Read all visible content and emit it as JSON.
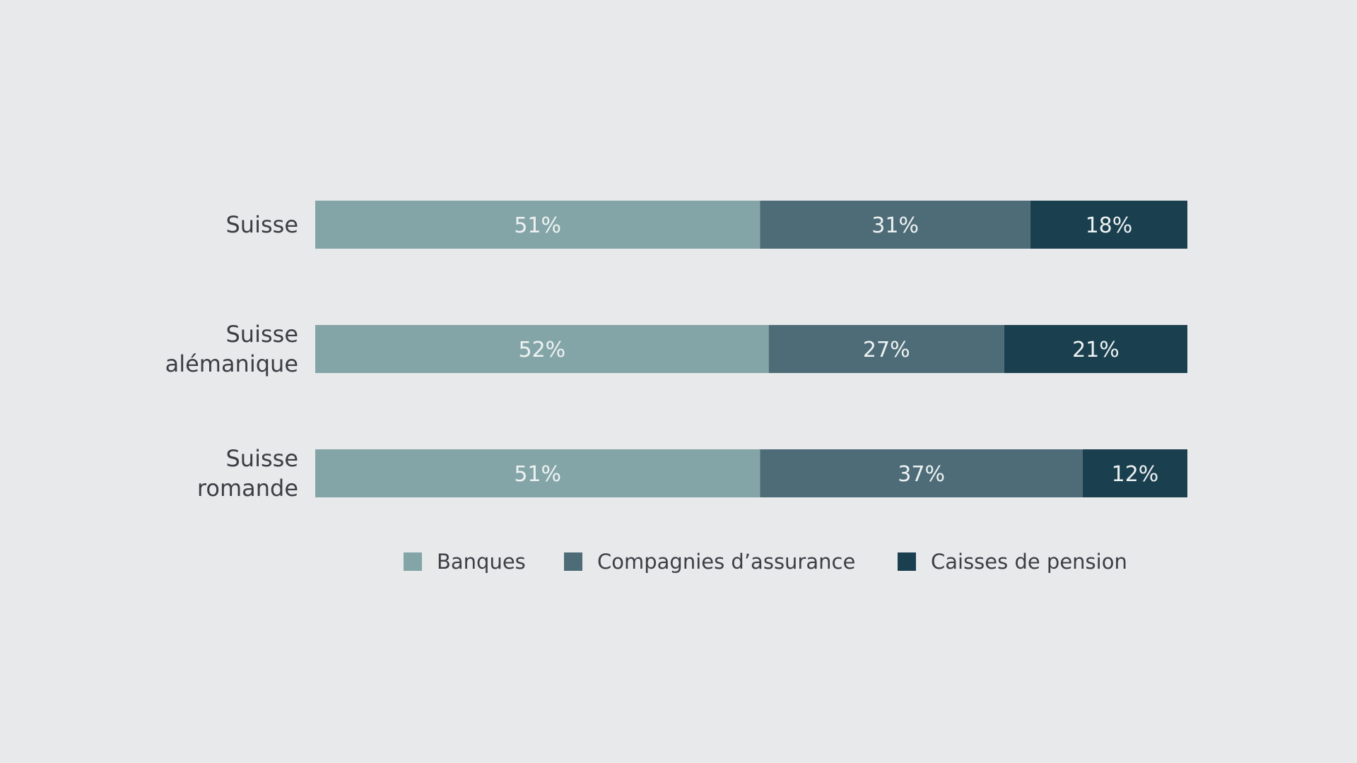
{
  "chart_data": {
    "type": "bar",
    "orientation": "horizontal",
    "stacked": true,
    "categories": [
      "Suisse",
      "Suisse alémanique",
      "Suisse romande"
    ],
    "category_lines": [
      [
        "Suisse"
      ],
      [
        "Suisse",
        "alémanique"
      ],
      [
        "Suisse",
        "romande"
      ]
    ],
    "series": [
      {
        "name": "Banques",
        "color": "#84a5a7",
        "values": [
          51,
          52,
          51
        ]
      },
      {
        "name": "Compagnies d’assurance",
        "color": "#4d6c77",
        "values": [
          31,
          27,
          37
        ]
      },
      {
        "name": "Caisses de pension",
        "color": "#1a3f4f",
        "values": [
          18,
          21,
          12
        ]
      }
    ],
    "value_labels": [
      [
        "51%",
        "31%",
        "18%"
      ],
      [
        "52%",
        "27%",
        "21%"
      ],
      [
        "51%",
        "37%",
        "12%"
      ]
    ],
    "xlim": [
      0,
      100
    ],
    "unit": "%",
    "grid": false,
    "legend_position": "bottom"
  }
}
